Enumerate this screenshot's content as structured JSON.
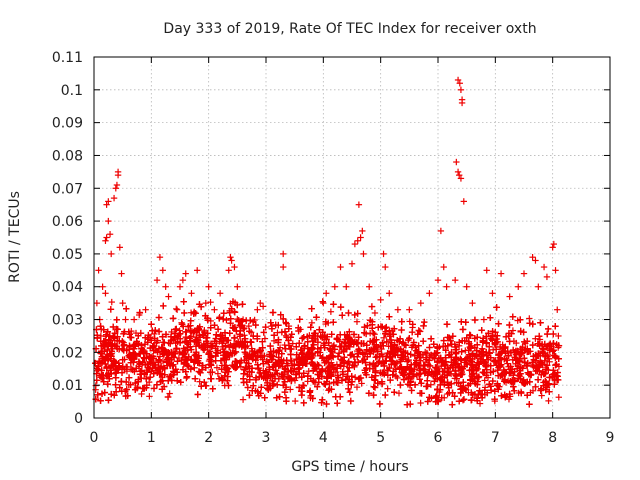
{
  "chart_data": {
    "type": "scatter",
    "title": "Day 333 of 2019, Rate Of TEC Index for receiver oxth",
    "xlabel": "GPS time / hours",
    "ylabel": "ROTI / TECUs",
    "xlim": [
      0,
      9
    ],
    "ylim": [
      0,
      0.11
    ],
    "xticks": [
      "0",
      "1",
      "2",
      "3",
      "4",
      "5",
      "6",
      "7",
      "8",
      "9"
    ],
    "yticks": [
      "0",
      "0.01",
      "0.02",
      "0.03",
      "0.04",
      "0.05",
      "0.06",
      "0.07",
      "0.08",
      "0.09",
      "0.1",
      "0.11"
    ],
    "grid": true,
    "marker": "+",
    "color": "#ee0000",
    "series": [
      {
        "name": "ROTI",
        "points": [
          [
            0.05,
            0.035
          ],
          [
            0.08,
            0.045
          ],
          [
            0.1,
            0.03
          ],
          [
            0.12,
            0.025
          ],
          [
            0.15,
            0.04
          ],
          [
            0.2,
            0.038
          ],
          [
            0.2,
            0.054
          ],
          [
            0.22,
            0.055
          ],
          [
            0.25,
            0.06
          ],
          [
            0.22,
            0.065
          ],
          [
            0.25,
            0.066
          ],
          [
            0.28,
            0.056
          ],
          [
            0.3,
            0.05
          ],
          [
            0.35,
            0.067
          ],
          [
            0.38,
            0.07
          ],
          [
            0.4,
            0.071
          ],
          [
            0.42,
            0.075
          ],
          [
            0.42,
            0.074
          ],
          [
            0.45,
            0.052
          ],
          [
            0.48,
            0.044
          ],
          [
            0.5,
            0.035
          ],
          [
            0.55,
            0.03
          ],
          [
            0.7,
            0.03
          ],
          [
            0.8,
            0.032
          ],
          [
            0.9,
            0.033
          ],
          [
            1.1,
            0.042
          ],
          [
            1.15,
            0.049
          ],
          [
            1.2,
            0.045
          ],
          [
            1.25,
            0.04
          ],
          [
            1.3,
            0.037
          ],
          [
            1.45,
            0.033
          ],
          [
            1.5,
            0.04
          ],
          [
            1.55,
            0.042
          ],
          [
            1.6,
            0.044
          ],
          [
            1.7,
            0.038
          ],
          [
            1.8,
            0.045
          ],
          [
            1.95,
            0.035
          ],
          [
            2.0,
            0.04
          ],
          [
            2.1,
            0.033
          ],
          [
            2.2,
            0.038
          ],
          [
            2.35,
            0.045
          ],
          [
            2.38,
            0.049
          ],
          [
            2.4,
            0.048
          ],
          [
            2.45,
            0.046
          ],
          [
            2.5,
            0.04
          ],
          [
            2.6,
            0.03
          ],
          [
            2.7,
            0.028
          ],
          [
            2.85,
            0.033
          ],
          [
            2.9,
            0.035
          ],
          [
            2.95,
            0.034
          ],
          [
            3.1,
            0.028
          ],
          [
            3.2,
            0.026
          ],
          [
            3.3,
            0.05
          ],
          [
            3.3,
            0.046
          ],
          [
            3.4,
            0.028
          ],
          [
            3.6,
            0.027
          ],
          [
            3.8,
            0.029
          ],
          [
            4.0,
            0.035
          ],
          [
            4.05,
            0.038
          ],
          [
            4.2,
            0.04
          ],
          [
            4.3,
            0.046
          ],
          [
            4.4,
            0.04
          ],
          [
            4.5,
            0.047
          ],
          [
            4.55,
            0.053
          ],
          [
            4.6,
            0.054
          ],
          [
            4.62,
            0.065
          ],
          [
            4.65,
            0.055
          ],
          [
            4.68,
            0.057
          ],
          [
            4.7,
            0.05
          ],
          [
            4.8,
            0.04
          ],
          [
            4.9,
            0.032
          ],
          [
            5.0,
            0.036
          ],
          [
            5.05,
            0.05
          ],
          [
            5.08,
            0.046
          ],
          [
            5.15,
            0.038
          ],
          [
            5.3,
            0.033
          ],
          [
            5.5,
            0.033
          ],
          [
            5.7,
            0.035
          ],
          [
            5.85,
            0.038
          ],
          [
            6.0,
            0.042
          ],
          [
            6.05,
            0.057
          ],
          [
            6.1,
            0.046
          ],
          [
            6.15,
            0.04
          ],
          [
            6.3,
            0.042
          ],
          [
            6.32,
            0.078
          ],
          [
            6.35,
            0.075
          ],
          [
            6.37,
            0.074
          ],
          [
            6.4,
            0.073
          ],
          [
            6.35,
            0.103
          ],
          [
            6.38,
            0.102
          ],
          [
            6.4,
            0.1
          ],
          [
            6.42,
            0.097
          ],
          [
            6.42,
            0.096
          ],
          [
            6.45,
            0.066
          ],
          [
            6.5,
            0.04
          ],
          [
            6.6,
            0.035
          ],
          [
            6.8,
            0.03
          ],
          [
            6.85,
            0.045
          ],
          [
            6.95,
            0.038
          ],
          [
            7.1,
            0.044
          ],
          [
            7.25,
            0.037
          ],
          [
            7.4,
            0.04
          ],
          [
            7.5,
            0.044
          ],
          [
            7.65,
            0.049
          ],
          [
            7.7,
            0.048
          ],
          [
            7.75,
            0.04
          ],
          [
            7.85,
            0.046
          ],
          [
            7.9,
            0.043
          ],
          [
            8.0,
            0.052
          ],
          [
            8.02,
            0.053
          ],
          [
            8.05,
            0.045
          ],
          [
            8.08,
            0.033
          ],
          [
            8.1,
            0.025
          ]
        ]
      }
    ]
  }
}
